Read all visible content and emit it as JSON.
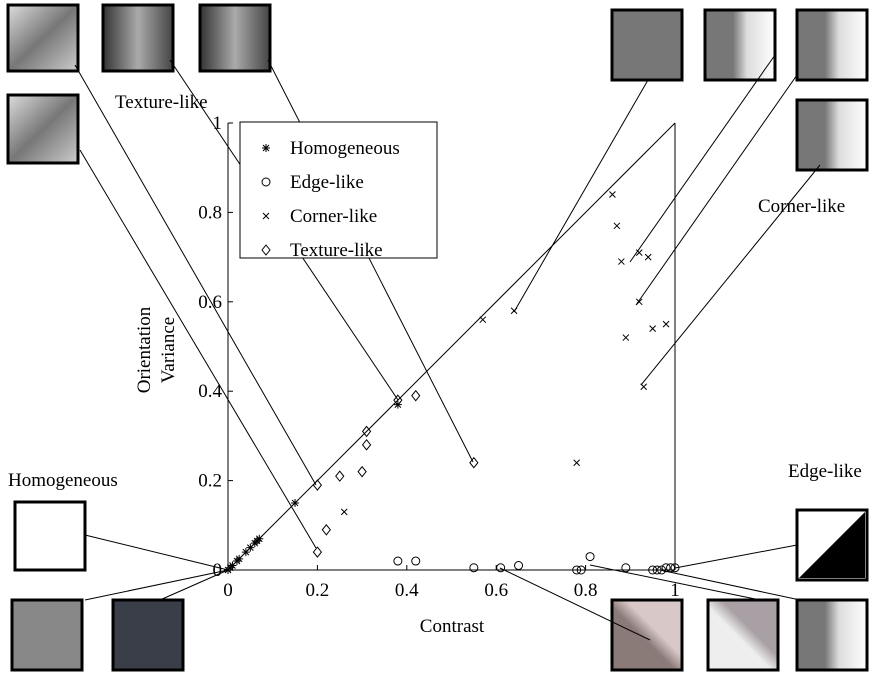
{
  "chart_data": {
    "type": "scatter",
    "x_label": "Contrast",
    "y_label": [
      "Orientation",
      "Variance"
    ],
    "xlim": [
      0,
      1
    ],
    "ylim": [
      0,
      1
    ],
    "xticks": [
      0,
      0.2,
      0.4,
      0.6,
      0.8,
      1
    ],
    "yticks": [
      0,
      0.2,
      0.4,
      0.6,
      0.8,
      1
    ],
    "legend": "upper left",
    "annotations": [
      "Texture-like",
      "Corner-like",
      "Homogeneous",
      "Edge-like"
    ],
    "series": [
      {
        "name": "Homogeneous",
        "marker": "star",
        "color": "#000000",
        "x": [
          0,
          0.005,
          0.01,
          0.02,
          0.025,
          0.04,
          0.05,
          0.06,
          0.065,
          0.07,
          0.15,
          0.38
        ],
        "values": [
          0,
          0.005,
          0.01,
          0.02,
          0.025,
          0.04,
          0.05,
          0.06,
          0.065,
          0.07,
          0.15,
          0.37
        ]
      },
      {
        "name": "Edge-like",
        "marker": "circle",
        "color": "#000000",
        "x": [
          0.38,
          0.42,
          0.55,
          0.61,
          0.65,
          0.78,
          0.79,
          0.81,
          0.89,
          0.95,
          0.96,
          0.97,
          0.98,
          0.99,
          1.0
        ],
        "values": [
          0.02,
          0.02,
          0.005,
          0.005,
          0.01,
          0,
          0,
          0.03,
          0.005,
          0,
          0,
          0,
          0.005,
          0.005,
          0.005
        ]
      },
      {
        "name": "Corner-like",
        "marker": "x",
        "color": "#000000",
        "x": [
          0.26,
          0.57,
          0.64,
          0.78,
          0.86,
          0.87,
          0.88,
          0.89,
          0.92,
          0.92,
          0.94,
          0.95,
          0.98,
          0.93
        ],
        "values": [
          0.13,
          0.56,
          0.58,
          0.24,
          0.84,
          0.77,
          0.69,
          0.52,
          0.71,
          0.6,
          0.7,
          0.54,
          0.55,
          0.41
        ]
      },
      {
        "name": "Texture-like",
        "marker": "diamond",
        "color": "#000000",
        "x": [
          0.2,
          0.22,
          0.2,
          0.25,
          0.3,
          0.31,
          0.31,
          0.38,
          0.42,
          0.55
        ],
        "values": [
          0.04,
          0.09,
          0.19,
          0.21,
          0.22,
          0.28,
          0.31,
          0.38,
          0.39,
          0.24
        ]
      }
    ]
  }
}
